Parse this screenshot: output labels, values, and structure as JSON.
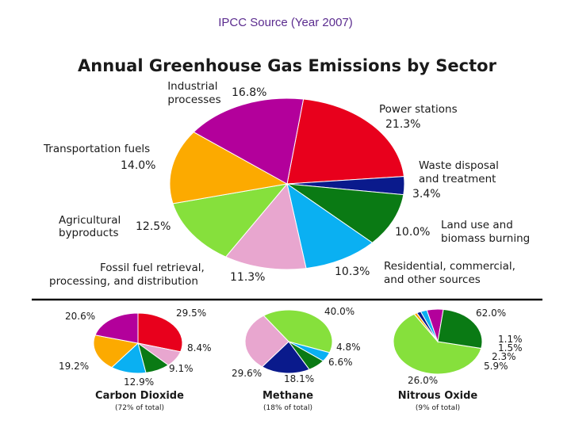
{
  "header": {
    "source": "IPCC Source (Year 2007)"
  },
  "chart_data": [
    {
      "type": "pie",
      "title": "Annual Greenhouse Gas Emissions by Sector",
      "slices": [
        {
          "label": "Power stations",
          "value": 21.3,
          "display": "21.3%",
          "color": "#e8001c"
        },
        {
          "label": "Waste disposal and treatment",
          "value": 3.4,
          "display": "3.4%",
          "color": "#0a1a8c"
        },
        {
          "label": "Land use and biomass burning",
          "value": 10.0,
          "display": "10.0%",
          "color": "#0a7a14"
        },
        {
          "label": "Residential, commercial, and other sources",
          "value": 10.3,
          "display": "10.3%",
          "color": "#0ab0f2"
        },
        {
          "label": "Fossil fuel retrieval, processing, and distribution",
          "value": 11.3,
          "display": "11.3%",
          "color": "#e8a6cf"
        },
        {
          "label": "Agricultural byproducts",
          "value": 12.5,
          "display": "12.5%",
          "color": "#86e03c"
        },
        {
          "label": "Transportation fuels",
          "value": 14.0,
          "display": "14.0%",
          "color": "#fcaa00"
        },
        {
          "label": "Industrial processes",
          "value": 16.8,
          "display": "16.8%",
          "color": "#b3009b"
        }
      ]
    },
    {
      "type": "pie",
      "title": "Carbon Dioxide",
      "subtitle": "(72% of total)",
      "slices": [
        {
          "value": 29.5,
          "display": "29.5%",
          "color": "#e8001c"
        },
        {
          "value": 0.0,
          "display": "",
          "color": "#0a1a8c"
        },
        {
          "value": 8.4,
          "display": "8.4%",
          "color": "#e8a6cf"
        },
        {
          "value": 9.1,
          "display": "9.1%",
          "color": "#0a7a14"
        },
        {
          "value": 12.9,
          "display": "12.9%",
          "color": "#0ab0f2"
        },
        {
          "value": 19.2,
          "display": "19.2%",
          "color": "#fcaa00"
        },
        {
          "value": 20.6,
          "display": "20.6%",
          "color": "#b3009b"
        }
      ]
    },
    {
      "type": "pie",
      "title": "Methane",
      "subtitle": "(18% of total)",
      "slices": [
        {
          "value": 40.0,
          "display": "40.0%",
          "color": "#86e03c"
        },
        {
          "value": 4.8,
          "display": "4.8%",
          "color": "#0ab0f2"
        },
        {
          "value": 6.6,
          "display": "6.6%",
          "color": "#0a7a14"
        },
        {
          "value": 18.1,
          "display": "18.1%",
          "color": "#0a1a8c"
        },
        {
          "value": 29.6,
          "display": "29.6%",
          "color": "#e8a6cf"
        }
      ]
    },
    {
      "type": "pie",
      "title": "Nitrous Oxide",
      "subtitle": "(9% of total)",
      "slices": [
        {
          "value": 62.0,
          "display": "62.0%",
          "color": "#86e03c"
        },
        {
          "value": 1.1,
          "display": "1.1%",
          "color": "#fcaa00"
        },
        {
          "value": 1.5,
          "display": "1.5%",
          "color": "#0a1a8c"
        },
        {
          "value": 2.3,
          "display": "2.3%",
          "color": "#0ab0f2"
        },
        {
          "value": 5.9,
          "display": "5.9%",
          "color": "#b3009b"
        },
        {
          "value": 26.0,
          "display": "26.0%",
          "color": "#0a7a14"
        }
      ]
    }
  ]
}
